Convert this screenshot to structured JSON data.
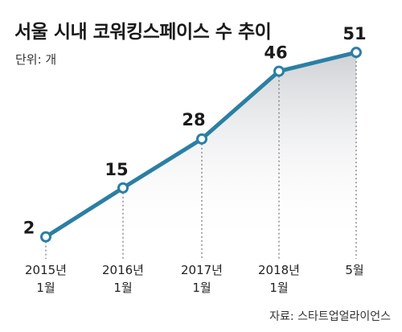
{
  "title": "서울 시내 코워킹스페이스 수 추이",
  "unit_label": "단위: 개",
  "source": "자료: 스타트업얼라이언스",
  "colors": {
    "line": "#2b7fa3",
    "marker_fill": "#ffffff",
    "area_top": "#c9ccd0",
    "area_bottom": "#ffffff",
    "dashed": "#555555"
  },
  "chart_data": {
    "type": "line",
    "title": "서울 시내 코워킹스페이스 수 추이",
    "unit": "단위: 개",
    "categories": [
      [
        "2015년",
        "1월"
      ],
      [
        "2016년",
        "1월"
      ],
      [
        "2017년",
        "1월"
      ],
      [
        "2018년",
        "1월"
      ],
      [
        "5월"
      ]
    ],
    "values": [
      2,
      15,
      28,
      46,
      51
    ],
    "ylim": [
      0,
      60
    ],
    "grid": false,
    "legend": "none",
    "area_fill": true
  }
}
